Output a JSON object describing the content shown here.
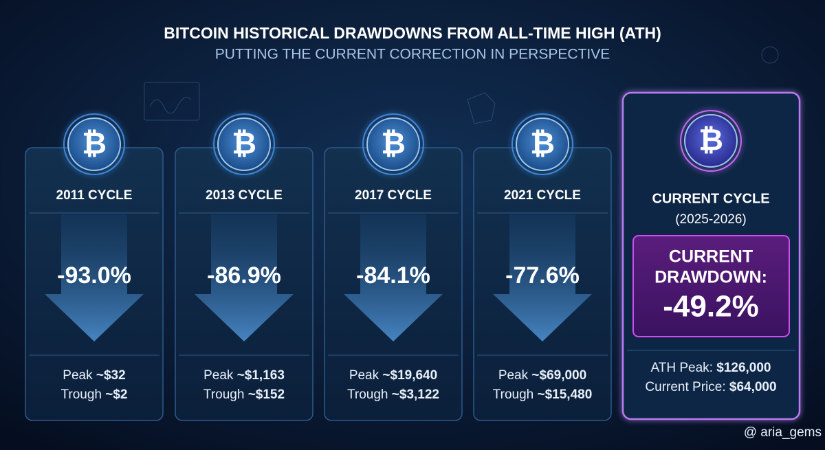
{
  "header": {
    "title": "BITCOIN HISTORICAL DRAWDOWNS FROM ALL-TIME HIGH (ATH)",
    "subtitle": "PUTTING THE CURRENT CORRECTION IN PERSPECTIVE"
  },
  "symbol": "₿",
  "cards": [
    {
      "cycle": "2011 CYCLE",
      "drawdown": "-93.0%",
      "peak_label": "Peak",
      "peak": "~$32",
      "trough_label": "Trough",
      "trough": "~$2"
    },
    {
      "cycle": "2013 CYCLE",
      "drawdown": "-86.9%",
      "peak_label": "Peak",
      "peak": "~$1,163",
      "trough_label": "Trough",
      "trough": "~$152"
    },
    {
      "cycle": "2017 CYCLE",
      "drawdown": "-84.1%",
      "peak_label": "Peak",
      "peak": "~$19,640",
      "trough_label": "Trough",
      "trough": "~$3,122"
    },
    {
      "cycle": "2021 CYCLE",
      "drawdown": "-77.6%",
      "peak_label": "Peak",
      "peak": "~$69,000",
      "trough_label": "Trough",
      "trough": "~$15,480"
    }
  ],
  "current": {
    "cycle": "CURRENT CYCLE",
    "period": "(2025-2026)",
    "drawdown_label_1": "CURRENT",
    "drawdown_label_2": "DRAWDOWN:",
    "drawdown": "-49.2%",
    "ath_label": "ATH Peak:",
    "ath": "$126,000",
    "price_label": "Current Price:",
    "price": "$64,000"
  },
  "watermark": "@ aria_gems"
}
